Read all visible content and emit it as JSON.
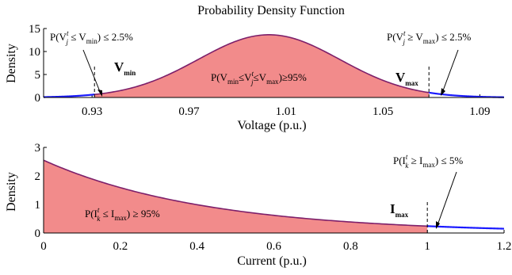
{
  "colors": {
    "fill": "#f28b8b",
    "pdf_line": "#7d1f6a",
    "tail_line": "#1a1aff",
    "threshold_line": "#000000"
  },
  "chart_data": [
    {
      "type": "area",
      "title": "Probability Density Function",
      "xlabel": "Voltage (p.u.)",
      "ylabel": "Density",
      "xlim": [
        0.91,
        1.1
      ],
      "ylim": [
        0,
        15
      ],
      "xticks": [
        "0.93",
        "0.97",
        "1.01",
        "1.05",
        "1.09"
      ],
      "yticks": [
        "0",
        "5",
        "10",
        "15"
      ],
      "distribution": {
        "shape": "normal",
        "mean": 1.003,
        "sd": 0.0292,
        "peak": 13.65
      },
      "series": [
        {
          "values": [
            [
              0.91,
              0.1
            ],
            [
              0.93,
              0.57
            ],
            [
              0.95,
              2.6
            ],
            [
              0.97,
              7.6
            ],
            [
              0.99,
              12.5
            ],
            [
              1.003,
              13.65
            ],
            [
              1.01,
              13.2
            ],
            [
              1.03,
              8.6
            ],
            [
              1.05,
              3.6
            ],
            [
              1.07,
              0.96
            ],
            [
              1.09,
              0.17
            ],
            [
              1.1,
              0.07
            ]
          ]
        }
      ],
      "shaded_region": [
        0.931,
        1.069
      ],
      "thresholds": [
        {
          "x": 0.931,
          "label_main": "V",
          "label_sub": "min"
        },
        {
          "x": 1.069,
          "label_main": "V",
          "label_sub": "max"
        }
      ],
      "annotations": {
        "left": [
          "P(V",
          "t",
          "j",
          " ≤ V",
          "min",
          ") ≤ 2.5%"
        ],
        "right": [
          "P(V",
          "t",
          "j",
          " ≥ V",
          "max",
          ") ≤ 2.5%"
        ],
        "center": [
          "P(V",
          "min",
          "≤V",
          "t",
          "j",
          "≤V",
          "max",
          ")≥95%"
        ]
      }
    },
    {
      "type": "area",
      "title": "",
      "xlabel": "Current (p.u.)",
      "ylabel": "Density",
      "xlim": [
        0,
        1.2
      ],
      "ylim": [
        0,
        3
      ],
      "xticks": [
        "0",
        "0.2",
        "0.4",
        "0.6",
        "0.8",
        "1",
        "1.2"
      ],
      "yticks": [
        "0",
        "1",
        "2",
        "3"
      ],
      "distribution": {
        "shape": "exponential",
        "initial": 2.55,
        "rate": 2.36
      },
      "series": [
        {
          "values": [
            [
              0,
              2.55
            ],
            [
              0.2,
              1.59
            ],
            [
              0.4,
              0.99
            ],
            [
              0.6,
              0.62
            ],
            [
              0.8,
              0.39
            ],
            [
              1.0,
              0.24
            ],
            [
              1.2,
              0.15
            ]
          ]
        }
      ],
      "shaded_region": [
        0,
        1.0
      ],
      "thresholds": [
        {
          "x": 1.0,
          "label_main": "I",
          "label_sub": "max"
        }
      ],
      "annotations": {
        "center": [
          "P(I",
          "t",
          "k",
          " ≤ I",
          "max",
          ") ≥ 95%"
        ],
        "right": [
          "P(I",
          "t",
          "k",
          " ≥ I",
          "max",
          ") ≤ 5%"
        ]
      }
    }
  ]
}
